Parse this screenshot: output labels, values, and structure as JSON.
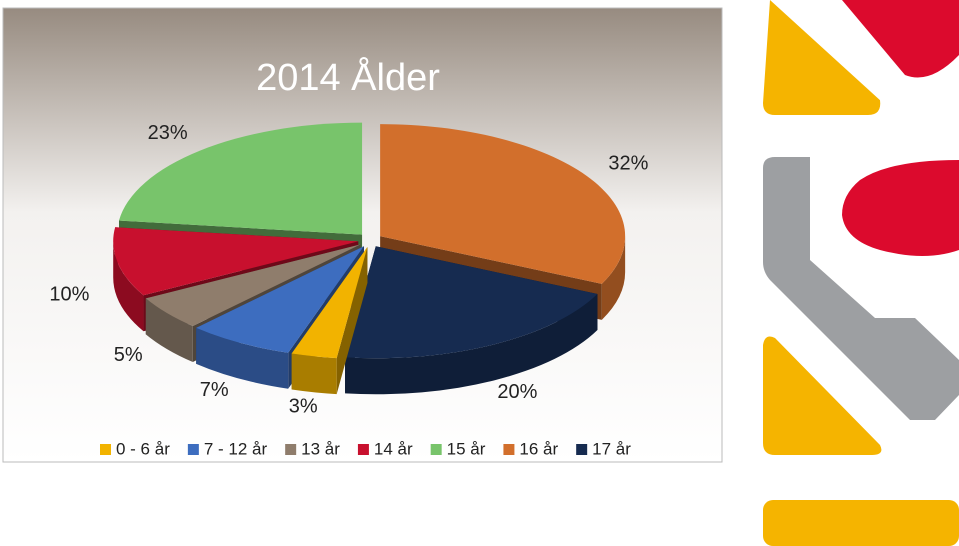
{
  "chart_data": {
    "type": "pie",
    "title": "2014 Ålder",
    "categories": [
      "0 - 6 år",
      "7 - 12 år",
      "13 år",
      "14 år",
      "15 år",
      "16 år",
      "17 år"
    ],
    "values": [
      3,
      7,
      5,
      10,
      23,
      32,
      20
    ],
    "value_labels": [
      "3%",
      "7%",
      "5%",
      "10%",
      "23%",
      "32%",
      "20%"
    ],
    "colors": [
      "#f2b300",
      "#3d6dbf",
      "#8f7d6c",
      "#c8102e",
      "#78c46b",
      "#d26f2c",
      "#162b50"
    ],
    "legend": "bottom"
  }
}
